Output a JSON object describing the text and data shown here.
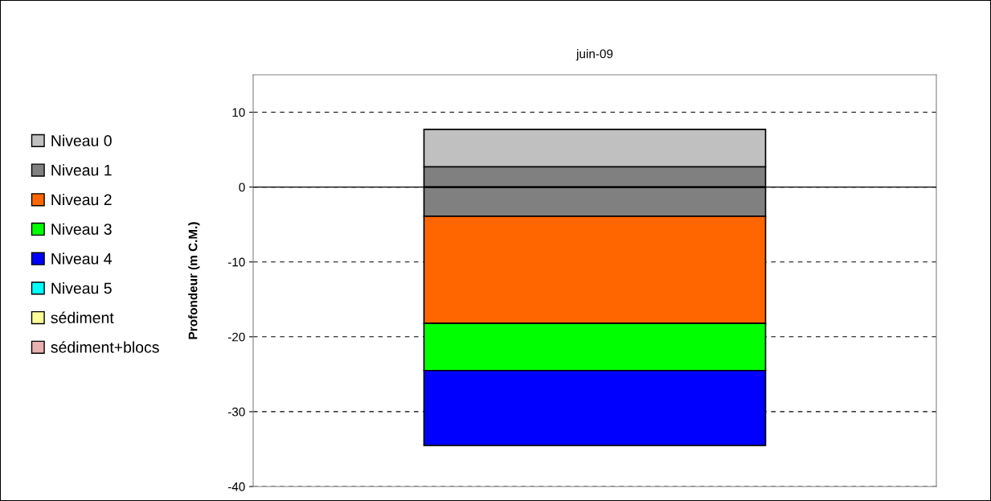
{
  "chart_data": {
    "type": "bar",
    "title": "juin-09",
    "ylabel": "Profondeur (m C.M.)",
    "categories": [
      null
    ],
    "series": [
      {
        "name": "Niveau 0",
        "color": "#c0c0c0",
        "values": [
          5.0
        ],
        "base": [
          2.7
        ]
      },
      {
        "name": "Niveau 1",
        "color": "#808080",
        "values": [
          6.6
        ],
        "base": [
          -3.9
        ]
      },
      {
        "name": "Niveau 2",
        "color": "#ff6600",
        "values": [
          14.3
        ],
        "base": [
          -18.2
        ]
      },
      {
        "name": "Niveau 3",
        "color": "#00ff00",
        "values": [
          6.3
        ],
        "base": [
          -24.5
        ]
      },
      {
        "name": "Niveau 4",
        "color": "#0000ff",
        "values": [
          10.0
        ],
        "base": [
          -34.5
        ]
      },
      {
        "name": "Niveau 5",
        "color": "#00ffff",
        "values": [
          null
        ],
        "base": [
          null
        ]
      },
      {
        "name": "sédiment",
        "color": "#ffff99",
        "values": [
          null
        ],
        "base": [
          null
        ]
      },
      {
        "name": "sédiment+blocs",
        "color": "#e8b0b0",
        "values": [
          null
        ],
        "base": [
          null
        ]
      }
    ],
    "ylim": [
      -40,
      15
    ],
    "yticks": [
      -40,
      -30,
      -20,
      -10,
      0,
      10
    ],
    "ref_lines": [
      {
        "axis": "y",
        "value": 0,
        "color": "#000000",
        "line_style": "solid"
      }
    ],
    "grid": "y",
    "legend": "left",
    "tick_labels": "y"
  }
}
